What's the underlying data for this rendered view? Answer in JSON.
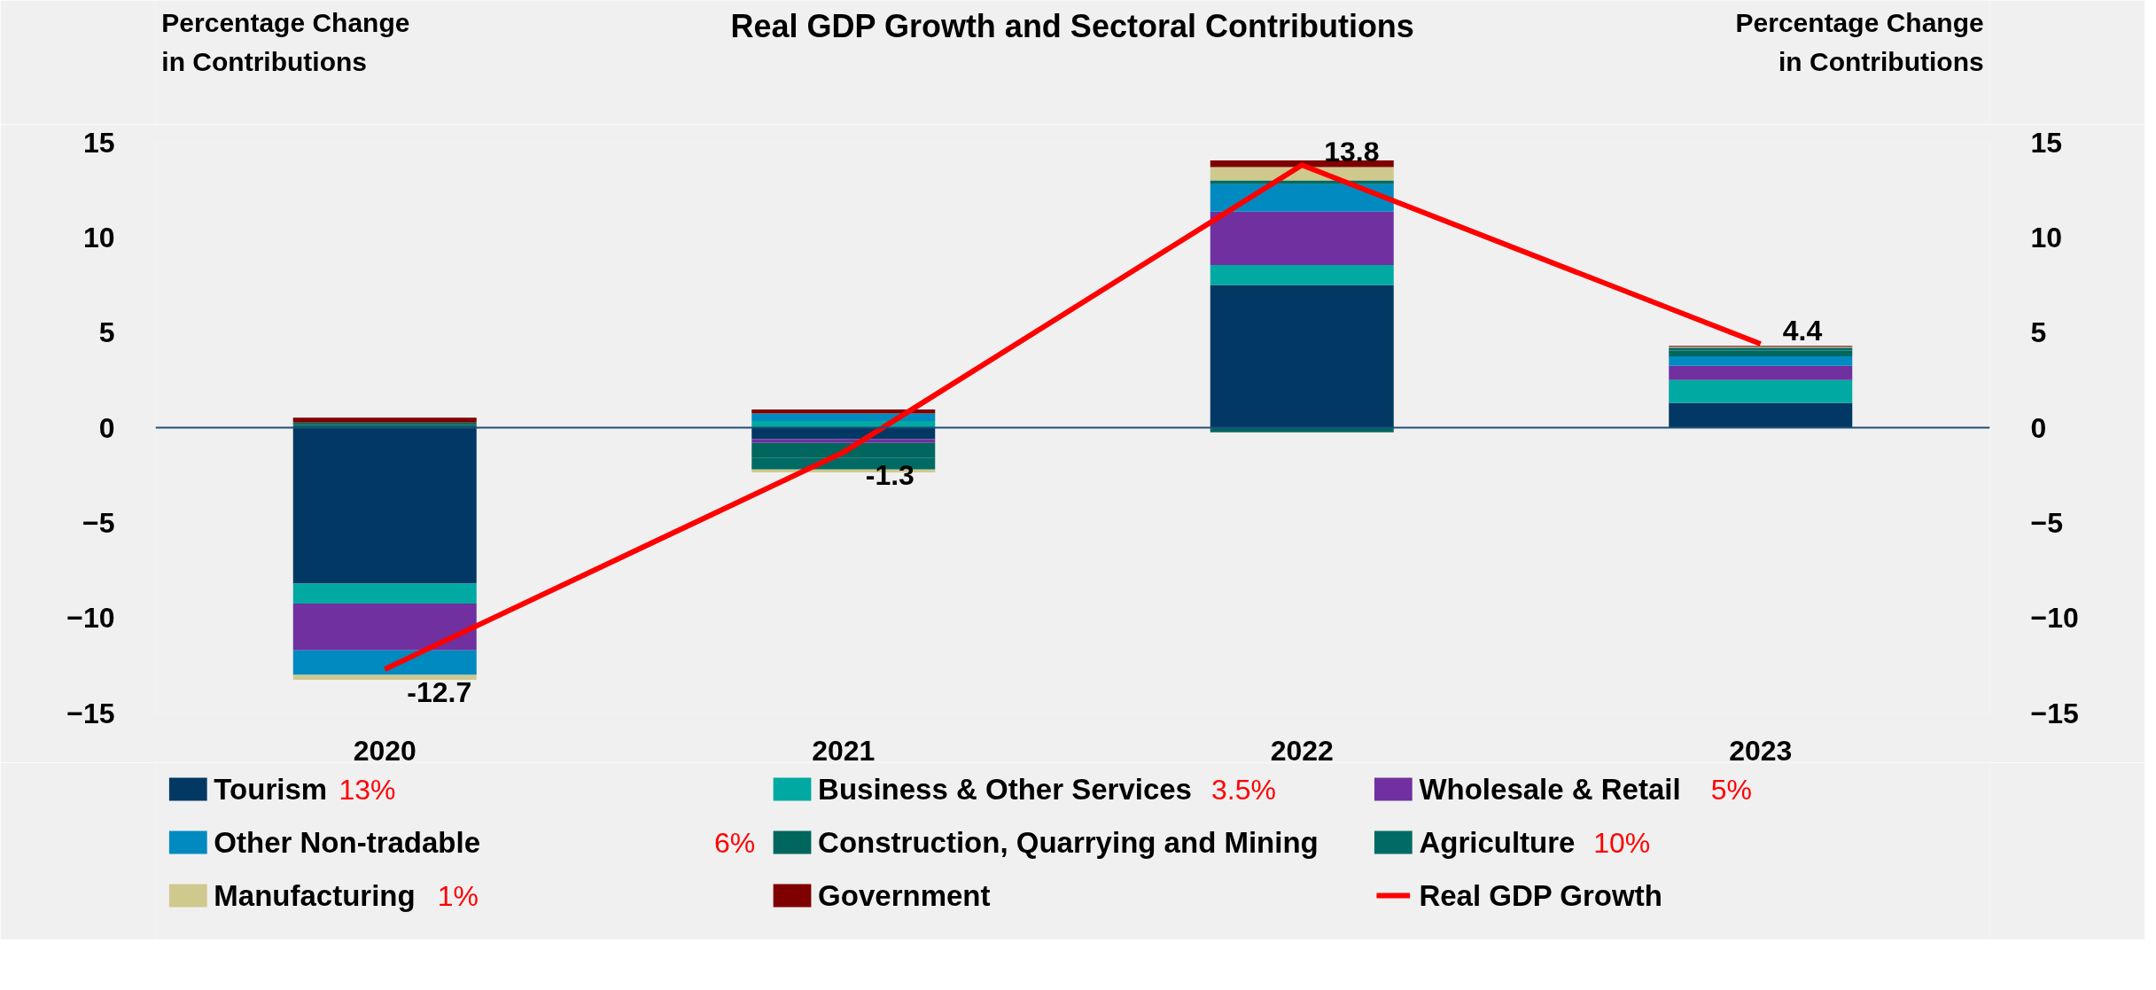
{
  "chart_data": {
    "type": "bar",
    "stacked": true,
    "title": "Real GDP Growth and Sectoral Contributions",
    "ylabel": "Percentage Change\nin Contributions",
    "y2label": "Percentage Change\nin Contributions",
    "categories": [
      "2020",
      "2021",
      "2022",
      "2023"
    ],
    "series": [
      {
        "name": "Tourism",
        "color": "#023864",
        "values": [
          -8.2,
          -0.6,
          7.5,
          1.3
        ]
      },
      {
        "name": "Business & Other Services",
        "color": "#00a9a2",
        "values": [
          -1.05,
          0.35,
          1.05,
          1.2
        ]
      },
      {
        "name": "Wholesale & Retail",
        "color": "#7030a0",
        "values": [
          -2.45,
          -0.2,
          2.8,
          0.75
        ]
      },
      {
        "name": "Other Non-tradable",
        "color": "#008abf",
        "values": [
          -1.3,
          0.4,
          1.45,
          0.5
        ]
      },
      {
        "name": "Construction, Quarrying and Mining",
        "color": "#00665e",
        "values": [
          0.15,
          -0.8,
          -0.25,
          0.3
        ]
      },
      {
        "name": "Agriculture",
        "color": "#006b64",
        "values": [
          0.12,
          -0.6,
          0.2,
          0.15
        ]
      },
      {
        "name": "Manufacturing",
        "color": "#d0c98d",
        "values": [
          -0.25,
          -0.15,
          0.7,
          0.05
        ]
      },
      {
        "name": "Government",
        "color": "#7f0000",
        "values": [
          0.25,
          0.2,
          0.35,
          0.05
        ]
      },
      {
        "name": "Real GDP Growth",
        "type": "line",
        "color": "#ff0000",
        "values": [
          -12.7,
          -1.3,
          13.8,
          4.4
        ],
        "value_labels": [
          "-12.7",
          "-1.3",
          "13.8",
          "4.4"
        ]
      }
    ],
    "ylim": [
      -15,
      15
    ],
    "yticks": [
      -15,
      -10,
      -5,
      0,
      5,
      10,
      15
    ],
    "y2lim": [
      -15,
      15
    ],
    "y2ticks": [
      -15,
      -10,
      -5,
      0,
      5,
      10,
      15
    ],
    "ref_lines": [
      {
        "axis": "y",
        "value": 0,
        "color": "#1f4e79"
      }
    ],
    "legend": "bottom",
    "grid": false,
    "line_style": "solid",
    "marker": "none",
    "annotations": [
      "13%",
      "3.5%",
      "5%",
      "6%",
      "10%",
      "1%"
    ]
  }
}
